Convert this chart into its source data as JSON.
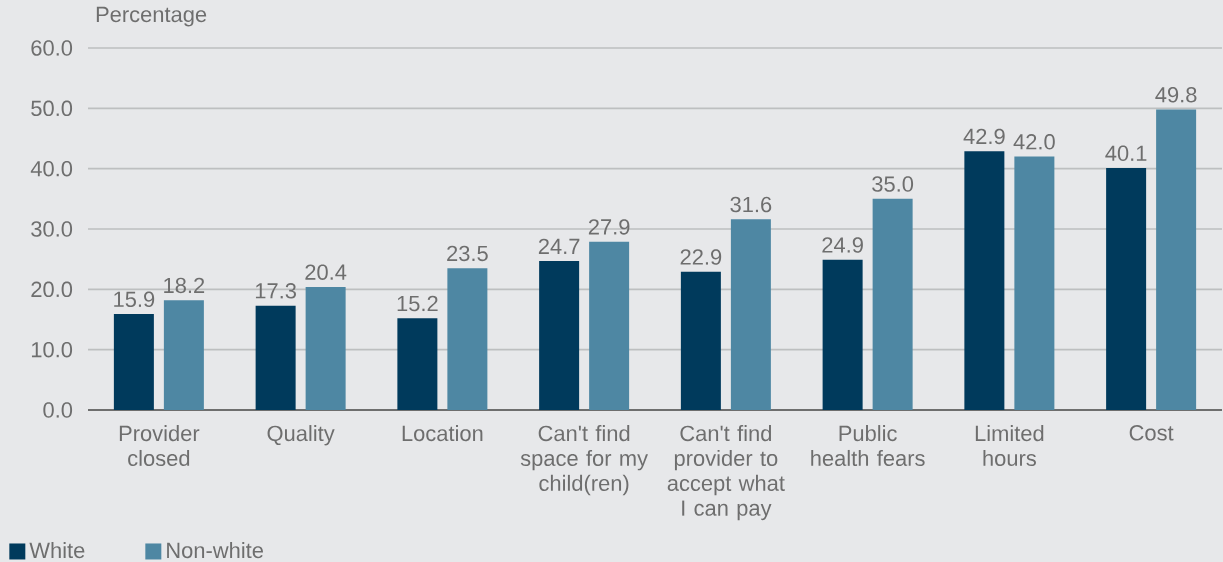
{
  "chart_data": {
    "type": "bar",
    "ylabel": "Percentage",
    "categories": [
      "Provider closed",
      "Quality",
      "Location",
      "Can't find space for my child(ren)",
      "Can't find provider to accept what I can pay",
      "Public health fears",
      "Limited hours",
      "Cost"
    ],
    "series": [
      {
        "name": "White",
        "color": "#003a5c",
        "values": [
          15.9,
          17.3,
          15.2,
          24.7,
          22.9,
          24.9,
          42.9,
          40.1
        ],
        "value_labels": [
          "15.9",
          "17.3",
          "15.2",
          "24.7",
          "22.9",
          "24.9",
          "42.9",
          "40.1"
        ]
      },
      {
        "name": "Non-white",
        "color": "#4e87a3",
        "values": [
          18.2,
          20.4,
          23.5,
          27.9,
          31.6,
          35.0,
          42.0,
          49.8
        ],
        "value_labels": [
          "18.2",
          "20.4",
          "23.5",
          "27.9",
          "31.6",
          "35.0",
          "42.0",
          "49.8"
        ]
      }
    ],
    "ylim": [
      0,
      60
    ],
    "yticks": [
      {
        "value": 0,
        "label": "0.0"
      },
      {
        "value": 10,
        "label": "10.0"
      },
      {
        "value": 20,
        "label": "20.0"
      },
      {
        "value": 30,
        "label": "30.0"
      },
      {
        "value": 40,
        "label": "40.0"
      },
      {
        "value": 50,
        "label": "50.0"
      },
      {
        "value": 60,
        "label": "60.0"
      }
    ],
    "grid": "y",
    "legend": "bottom left"
  }
}
